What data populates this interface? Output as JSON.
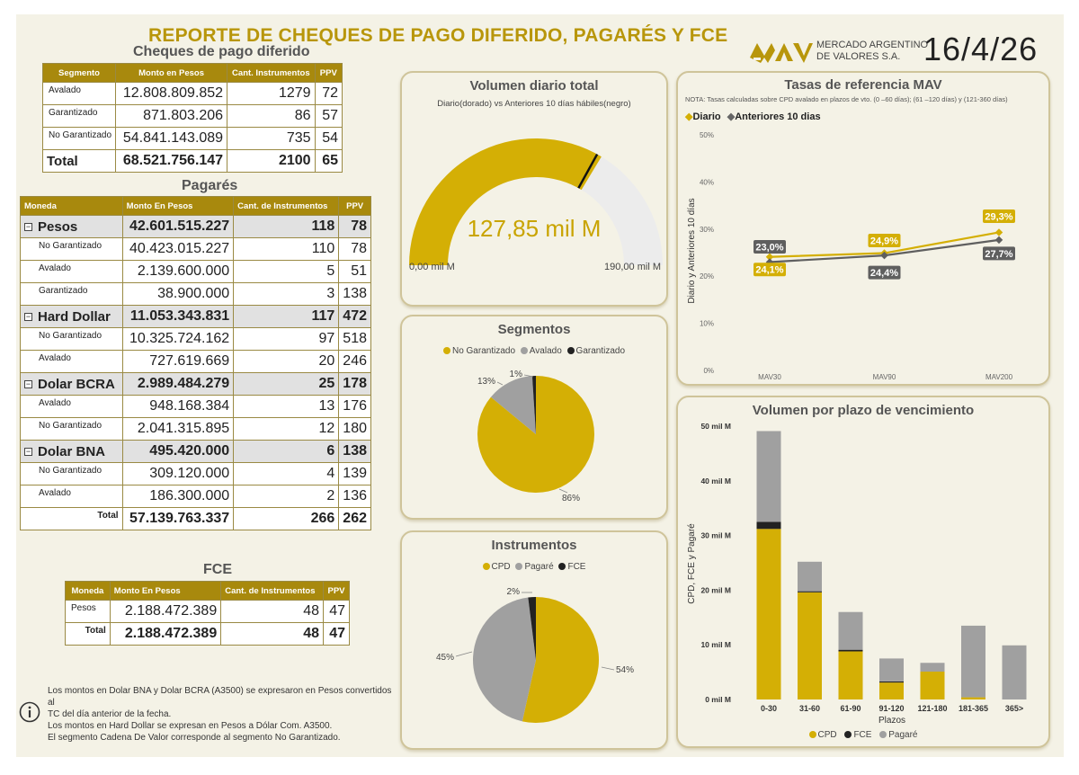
{
  "header": {
    "title": "REPORTE DE CHEQUES DE PAGO DIFERIDO, PAGARÉS Y FCE",
    "brand_line1": "MERCADO ARGENTINO",
    "brand_line2": "DE VALORES S.A.",
    "date": "16/4/26"
  },
  "colors": {
    "gold": "#d4af05",
    "grey": "#a0a0a0",
    "dark": "#222222",
    "header_bg": "#a8890d"
  },
  "cpd": {
    "title": "Cheques de pago diferido",
    "headers": [
      "Segmento",
      "Monto en Pesos",
      "Cant. Instrumentos",
      "PPV"
    ],
    "rows": [
      {
        "segment": "Avalado",
        "amount": "12.808.809.852",
        "count": "1279",
        "ppv": "72"
      },
      {
        "segment": "Garantizado",
        "amount": "871.803.206",
        "count": "86",
        "ppv": "57"
      },
      {
        "segment": "No Garantizado",
        "amount": "54.841.143.089",
        "count": "735",
        "ppv": "54"
      }
    ],
    "total": {
      "label": "Total",
      "amount": "68.521.756.147",
      "count": "2100",
      "ppv": "65"
    }
  },
  "pagares": {
    "title": "Pagarés",
    "headers": [
      "Moneda",
      "Monto En Pesos",
      "Cant. de Instrumentos",
      "PPV"
    ],
    "groups": [
      {
        "name": "Pesos",
        "amount": "42.601.515.227",
        "count": "118",
        "ppv": "78",
        "rows": [
          {
            "segment": "No Garantizado",
            "amount": "40.423.015.227",
            "count": "110",
            "ppv": "78"
          },
          {
            "segment": "Avalado",
            "amount": "2.139.600.000",
            "count": "5",
            "ppv": "51"
          },
          {
            "segment": "Garantizado",
            "amount": "38.900.000",
            "count": "3",
            "ppv": "138"
          }
        ]
      },
      {
        "name": "Hard Dollar",
        "amount": "11.053.343.831",
        "count": "117",
        "ppv": "472",
        "rows": [
          {
            "segment": "No Garantizado",
            "amount": "10.325.724.162",
            "count": "97",
            "ppv": "518"
          },
          {
            "segment": "Avalado",
            "amount": "727.619.669",
            "count": "20",
            "ppv": "246"
          }
        ]
      },
      {
        "name": "Dolar BCRA",
        "amount": "2.989.484.279",
        "count": "25",
        "ppv": "178",
        "rows": [
          {
            "segment": "Avalado",
            "amount": "948.168.384",
            "count": "13",
            "ppv": "176"
          },
          {
            "segment": "No Garantizado",
            "amount": "2.041.315.895",
            "count": "12",
            "ppv": "180"
          }
        ]
      },
      {
        "name": "Dolar BNA",
        "amount": "495.420.000",
        "count": "6",
        "ppv": "138",
        "rows": [
          {
            "segment": "No Garantizado",
            "amount": "309.120.000",
            "count": "4",
            "ppv": "139"
          },
          {
            "segment": "Avalado",
            "amount": "186.300.000",
            "count": "2",
            "ppv": "136"
          }
        ]
      }
    ],
    "total": {
      "label": "Total",
      "amount": "57.139.763.337",
      "count": "266",
      "ppv": "262"
    }
  },
  "fce": {
    "title": "FCE",
    "headers": [
      "Moneda",
      "Monto En Pesos",
      "Cant. de Instrumentos",
      "PPV"
    ],
    "rows": [
      {
        "segment": "Pesos",
        "amount": "2.188.472.389",
        "count": "48",
        "ppv": "47"
      }
    ],
    "total": {
      "label": "Total",
      "amount": "2.188.472.389",
      "count": "48",
      "ppv": "47"
    }
  },
  "notes": {
    "line1": "Los montos en Dolar BNA y Dolar BCRA (A3500) se expresaron en Pesos convertidos al",
    "line2": "TC del día anterior de la fecha.",
    "line3": "Los montos en Hard Dollar se expresan en Pesos a Dólar Com. A3500.",
    "line4": "El segmento Cadena De Valor corresponde al segmento No Garantizado."
  },
  "chart_data": [
    {
      "type": "gauge",
      "title": "Volumen diario total",
      "subtitle": "Diario(dorado) vs Anteriores 10 días hábiles(negro)",
      "value": 127.85,
      "value_label": "127,85 mil M",
      "reference": 125.5,
      "min": 0,
      "max": 190,
      "min_label": "0,00 mil M",
      "max_label": "190,00 mil M"
    },
    {
      "type": "line",
      "title": "Tasas de referencia MAV",
      "note": "NOTA: Tasas calculadas sobre CPD avalado en plazos de vto. (0 –60 días); (61 –120 días) y (121-360 días)",
      "categories": [
        "MAV30",
        "MAV90",
        "MAV200"
      ],
      "series": [
        {
          "name": "Diario",
          "values": [
            24.1,
            24.9,
            29.3
          ],
          "labels": [
            "24,1%",
            "24,9%",
            "29,3%"
          ]
        },
        {
          "name": "Anteriores 10 dias",
          "values": [
            23.0,
            24.4,
            27.7
          ],
          "labels": [
            "23,0%",
            "24,4%",
            "27,7%"
          ]
        }
      ],
      "ylabel": "Diario y Anteriores 10 días",
      "ylim": [
        0,
        50
      ],
      "yticks": [
        "0%",
        "10%",
        "20%",
        "30%",
        "40%",
        "50%"
      ]
    },
    {
      "type": "pie",
      "title": "Segmentos",
      "labels": [
        "No Garantizado",
        "Avalado",
        "Garantizado"
      ],
      "values": [
        86,
        13,
        1
      ],
      "value_labels": [
        "86%",
        "13%",
        "1%"
      ]
    },
    {
      "type": "pie",
      "title": "Instrumentos",
      "labels": [
        "CPD",
        "Pagaré",
        "FCE"
      ],
      "values": [
        54,
        45,
        2
      ],
      "value_labels": [
        "54%",
        "45%",
        "2%"
      ]
    },
    {
      "type": "bar",
      "stacked": true,
      "title": "Volumen por plazo de vencimiento",
      "categories": [
        "0-30",
        "31-60",
        "61-90",
        "91-120",
        "121-180",
        "181-365",
        "365>"
      ],
      "series": [
        {
          "name": "CPD",
          "values": [
            31.2,
            19.6,
            8.8,
            3.1,
            5.1,
            0.4,
            0
          ]
        },
        {
          "name": "FCE",
          "values": [
            1.3,
            0.2,
            0.3,
            0.2,
            0,
            0,
            0
          ]
        },
        {
          "name": "Pagaré",
          "values": [
            16.6,
            5.4,
            6.9,
            4.2,
            1.6,
            13.1,
            9.9
          ]
        }
      ],
      "xlabel": "Plazos",
      "ylabel": "CPD, FCE y Pagaré",
      "ylim": [
        0,
        50
      ],
      "yticks": [
        "0 mil M",
        "10 mil M",
        "20 mil M",
        "30 mil M",
        "40 mil M",
        "50 mil M"
      ]
    }
  ]
}
